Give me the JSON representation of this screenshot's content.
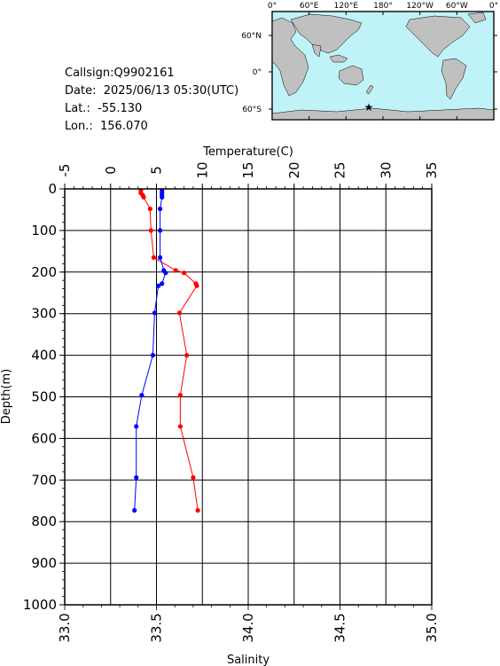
{
  "station": {
    "callsign_label": "Callsign:",
    "callsign": "Q9902161",
    "date_label": "Date:",
    "date": "2025/06/13 05:30(UTC)",
    "lat_label": "Lat.:",
    "lat": "-55.130",
    "lon_label": "Lon.:",
    "lon": "156.070"
  },
  "map": {
    "top_labels": [
      "0°",
      "60°E",
      "120°E",
      "180°",
      "120°W",
      "60°W",
      "0°"
    ],
    "lat_labels": [
      "60°N",
      "0°",
      "60°S"
    ],
    "marker_color": "#ff0000",
    "ocean_color": "#bff3f8",
    "land_color": "#c0c0c0"
  },
  "chart_data": {
    "type": "line",
    "top_axis_label": "Temperature(C)",
    "bottom_axis_label": "Salinity",
    "left_axis_label": "Depth(m)",
    "temperature_ticks": [
      "-5",
      "0",
      "5",
      "10",
      "15",
      "20",
      "25",
      "30",
      "35"
    ],
    "salinity_ticks": [
      "33.0",
      "33.5",
      "34.0",
      "34.5",
      "35.0"
    ],
    "depth_ticks": [
      "0",
      "100",
      "200",
      "300",
      "400",
      "500",
      "600",
      "700",
      "800",
      "900",
      "1000"
    ],
    "temperature_range": [
      -5,
      35
    ],
    "salinity_range": [
      33.0,
      35.0
    ],
    "depth_range": [
      0,
      1000
    ],
    "grid": true,
    "series": [
      {
        "color": "#ff0000",
        "axis": "temperature",
        "points": [
          {
            "t": 3.3,
            "d": 4
          },
          {
            "t": 3.3,
            "d": 10
          },
          {
            "t": 3.5,
            "d": 15
          },
          {
            "t": 3.6,
            "d": 20
          },
          {
            "t": 4.3,
            "d": 48
          },
          {
            "t": 4.4,
            "d": 100
          },
          {
            "t": 4.7,
            "d": 165
          },
          {
            "t": 7.1,
            "d": 196
          },
          {
            "t": 8.0,
            "d": 202
          },
          {
            "t": 9.3,
            "d": 228
          },
          {
            "t": 9.4,
            "d": 233
          },
          {
            "t": 7.5,
            "d": 298
          },
          {
            "t": 8.3,
            "d": 400
          },
          {
            "t": 7.6,
            "d": 496
          },
          {
            "t": 7.6,
            "d": 571
          },
          {
            "t": 9.0,
            "d": 694
          },
          {
            "t": 9.5,
            "d": 773
          }
        ]
      },
      {
        "color": "#0000ff",
        "axis": "salinity",
        "points": [
          {
            "s": 33.53,
            "d": 4
          },
          {
            "s": 33.53,
            "d": 10
          },
          {
            "s": 33.53,
            "d": 15
          },
          {
            "s": 33.53,
            "d": 20
          },
          {
            "s": 33.52,
            "d": 48
          },
          {
            "s": 33.52,
            "d": 100
          },
          {
            "s": 33.52,
            "d": 165
          },
          {
            "s": 33.54,
            "d": 196
          },
          {
            "s": 33.55,
            "d": 202
          },
          {
            "s": 33.53,
            "d": 228
          },
          {
            "s": 33.51,
            "d": 233
          },
          {
            "s": 33.49,
            "d": 298
          },
          {
            "s": 33.48,
            "d": 400
          },
          {
            "s": 33.42,
            "d": 496
          },
          {
            "s": 33.39,
            "d": 571
          },
          {
            "s": 33.39,
            "d": 694
          },
          {
            "s": 33.38,
            "d": 773
          }
        ]
      }
    ]
  }
}
